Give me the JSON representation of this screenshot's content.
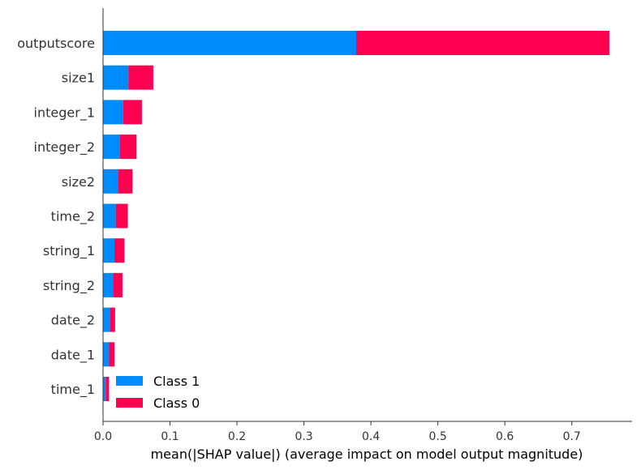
{
  "chart_data": {
    "type": "bar",
    "orientation": "horizontal",
    "stacked": true,
    "categories": [
      "outputscore",
      "size1",
      "integer_1",
      "integer_2",
      "size2",
      "time_2",
      "string_1",
      "string_2",
      "date_2",
      "date_1",
      "time_1"
    ],
    "series": [
      {
        "name": "Class 1",
        "color": "#008bfb",
        "values": [
          0.378,
          0.038,
          0.03,
          0.025,
          0.023,
          0.019,
          0.017,
          0.015,
          0.01,
          0.009,
          0.004
        ]
      },
      {
        "name": "Class 0",
        "color": "#ff0051",
        "values": [
          0.378,
          0.037,
          0.028,
          0.025,
          0.021,
          0.018,
          0.015,
          0.014,
          0.008,
          0.008,
          0.005
        ]
      }
    ],
    "xticks": [
      "0.0",
      "0.1",
      "0.2",
      "0.3",
      "0.4",
      "0.5",
      "0.6",
      "0.7"
    ],
    "xlim": [
      0,
      0.79
    ],
    "xlabel": "mean(|SHAP value|) (average impact on model output magnitude)",
    "ylabel": "",
    "legend_position": "lower-left",
    "grid": false
  }
}
